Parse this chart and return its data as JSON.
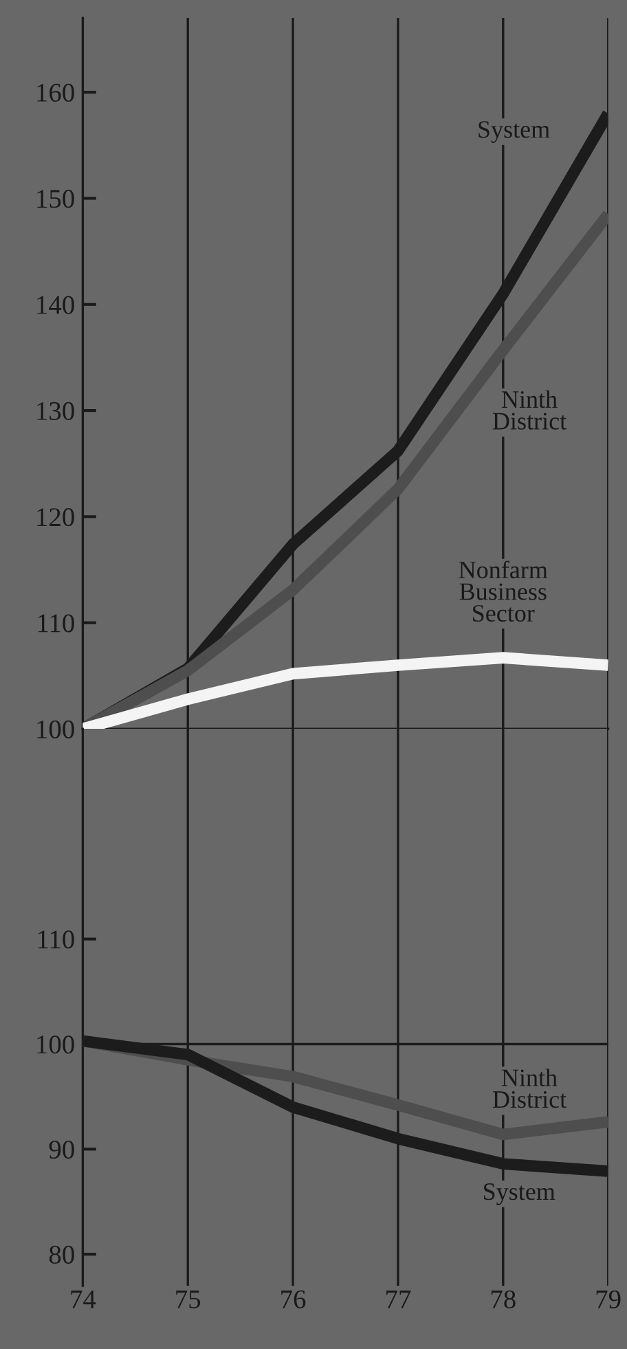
{
  "chart_data": [
    {
      "type": "line",
      "x": [
        74,
        75,
        76,
        77,
        78,
        79
      ],
      "xlim": [
        74,
        79
      ],
      "xticks": [
        74,
        75,
        76,
        77,
        78,
        79
      ],
      "ylim": [
        100,
        167
      ],
      "yticks": [
        100,
        110,
        120,
        130,
        140,
        150,
        160
      ],
      "grid": "x",
      "tick_labels": "y",
      "series": [
        {
          "name": "System",
          "color": "#1c1c1c",
          "values": [
            100,
            105.7,
            117.4,
            126.2,
            141,
            158
          ]
        },
        {
          "name": "Ninth\nDistrict",
          "color": "#4e4e4e",
          "values": [
            100,
            105.5,
            113.1,
            122.6,
            135.7,
            148.5
          ]
        },
        {
          "name": "Nonfarm\nBusiness\nSector",
          "color": "#f4f4f4",
          "values": [
            100,
            102.8,
            105.2,
            106,
            106.7,
            106
          ]
        }
      ]
    },
    {
      "type": "line",
      "x": [
        74,
        75,
        76,
        77,
        78,
        79
      ],
      "xlim": [
        74,
        79
      ],
      "xticks": [
        74,
        75,
        76,
        77,
        78,
        79
      ],
      "ylim": [
        77,
        130
      ],
      "yticks": [
        80,
        90,
        100,
        110
      ],
      "grid": "x",
      "ref_lines": [
        {
          "axis": "y",
          "value": 100,
          "color": "#1c1c1c"
        }
      ],
      "series": [
        {
          "name": "Ninth\nDistrict",
          "color": "#4e4e4e",
          "values": [
            100.3,
            98.5,
            96.9,
            94.2,
            91.4,
            92.6
          ]
        },
        {
          "name": "System",
          "color": "#1c1c1c",
          "values": [
            100.3,
            99,
            94,
            91,
            88.6,
            87.9
          ]
        }
      ]
    }
  ]
}
